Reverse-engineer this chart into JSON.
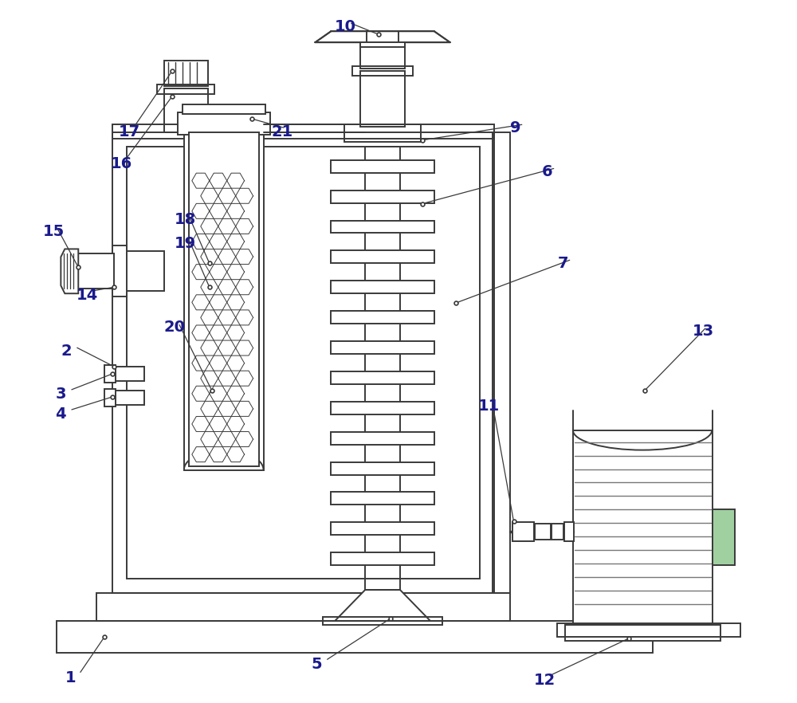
{
  "bg_color": "#ffffff",
  "lc": "#3a3a3a",
  "lw": 1.4,
  "label_color": "#1a1a8c",
  "label_fs": 14,
  "figsize": [
    10.0,
    8.82
  ],
  "dpi": 100
}
